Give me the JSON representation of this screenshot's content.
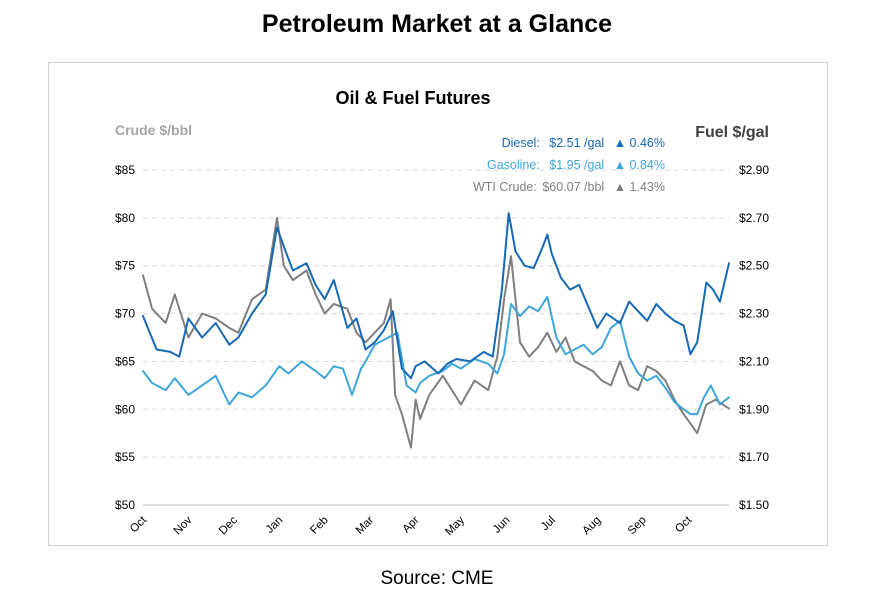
{
  "page": {
    "title": "Petroleum Market at a Glance",
    "source": "Source: CME"
  },
  "colors": {
    "diesel": "#1569b5",
    "gasoline": "#3fa6da",
    "crude": "#7f7f7f",
    "grid": "#d9d9d9"
  },
  "chart_data": {
    "type": "line",
    "title": "Oil & Fuel Futures",
    "ylabel_left": "Crude $/bbl",
    "ylabel_right": "Fuel $/gal",
    "left_axis": {
      "ylim": [
        50,
        85
      ],
      "ticks": [
        "$50",
        "$55",
        "$60",
        "$65",
        "$70",
        "$75",
        "$80",
        "$85"
      ]
    },
    "right_axis": {
      "ylim": [
        1.5,
        2.9
      ],
      "ticks": [
        "$1.50",
        "$1.70",
        "$1.90",
        "$2.10",
        "$2.30",
        "$2.50",
        "$2.70",
        "$2.90"
      ]
    },
    "grid": true,
    "x_tick_labels": [
      "Oct",
      "Nov",
      "Dec",
      "Jan",
      "Feb",
      "Mar",
      "Apr",
      "May",
      "Jun",
      "Jul",
      "Aug",
      "Sep",
      "Oct"
    ],
    "x_months_span": [
      0,
      12.9
    ],
    "legend": [
      {
        "name": "Diesel:",
        "price": "$2.51 /gal",
        "arrow": "▲",
        "change": "0.46%"
      },
      {
        "name": "Gasoline:",
        "price": "$1.95 /gal",
        "arrow": "▲",
        "change": "0.84%"
      },
      {
        "name": "WTI Crude:",
        "price": "$60.07 /bbl",
        "arrow": "▲",
        "change": "1.43%"
      }
    ],
    "legend_placement": "top-right",
    "series": [
      {
        "name": "Diesel",
        "axis": "right",
        "x": [
          0,
          0.3,
          0.6,
          0.8,
          1.0,
          1.3,
          1.6,
          1.9,
          2.1,
          2.4,
          2.7,
          2.95,
          3.1,
          3.3,
          3.6,
          3.8,
          4.0,
          4.2,
          4.5,
          4.7,
          4.9,
          5.1,
          5.3,
          5.5,
          5.7,
          5.9,
          6.0,
          6.2,
          6.5,
          6.7,
          6.9,
          7.2,
          7.5,
          7.7,
          7.9,
          8.05,
          8.2,
          8.4,
          8.6,
          8.8,
          8.9,
          9.0,
          9.2,
          9.4,
          9.6,
          9.8,
          10.0,
          10.2,
          10.5,
          10.7,
          10.9,
          11.1,
          11.3,
          11.5,
          11.7,
          11.9,
          12.05,
          12.2,
          12.4,
          12.55,
          12.7,
          12.9
        ],
        "values": [
          2.29,
          2.15,
          2.14,
          2.12,
          2.28,
          2.2,
          2.26,
          2.17,
          2.2,
          2.3,
          2.38,
          2.66,
          2.58,
          2.48,
          2.51,
          2.42,
          2.36,
          2.44,
          2.24,
          2.28,
          2.15,
          2.18,
          2.23,
          2.31,
          2.07,
          2.03,
          2.08,
          2.1,
          2.05,
          2.09,
          2.11,
          2.1,
          2.14,
          2.12,
          2.4,
          2.72,
          2.56,
          2.5,
          2.49,
          2.58,
          2.63,
          2.55,
          2.45,
          2.4,
          2.42,
          2.33,
          2.24,
          2.3,
          2.26,
          2.35,
          2.31,
          2.27,
          2.34,
          2.3,
          2.27,
          2.25,
          2.13,
          2.18,
          2.43,
          2.4,
          2.35,
          2.51
        ]
      },
      {
        "name": "Gasoline",
        "axis": "right",
        "x": [
          0,
          0.2,
          0.5,
          0.7,
          1.0,
          1.3,
          1.6,
          1.9,
          2.1,
          2.4,
          2.7,
          3.0,
          3.2,
          3.5,
          3.8,
          4.0,
          4.2,
          4.4,
          4.6,
          4.8,
          4.9,
          5.1,
          5.3,
          5.6,
          5.8,
          6.0,
          6.1,
          6.3,
          6.6,
          6.8,
          7.0,
          7.3,
          7.6,
          7.8,
          7.95,
          8.1,
          8.3,
          8.5,
          8.7,
          8.9,
          9.1,
          9.3,
          9.5,
          9.7,
          9.9,
          10.1,
          10.3,
          10.5,
          10.7,
          10.9,
          11.1,
          11.3,
          11.5,
          11.7,
          11.9,
          12.05,
          12.2,
          12.35,
          12.5,
          12.7,
          12.9
        ],
        "values": [
          2.06,
          2.01,
          1.98,
          2.03,
          1.96,
          2.0,
          2.04,
          1.92,
          1.97,
          1.95,
          2.0,
          2.08,
          2.05,
          2.1,
          2.06,
          2.03,
          2.08,
          2.07,
          1.96,
          2.07,
          2.1,
          2.17,
          2.19,
          2.22,
          2.0,
          1.97,
          2.01,
          2.04,
          2.06,
          2.09,
          2.07,
          2.11,
          2.09,
          2.05,
          2.13,
          2.34,
          2.29,
          2.33,
          2.31,
          2.37,
          2.2,
          2.13,
          2.15,
          2.17,
          2.13,
          2.16,
          2.24,
          2.27,
          2.12,
          2.05,
          2.02,
          2.04,
          1.99,
          1.93,
          1.9,
          1.88,
          1.88,
          1.95,
          2.0,
          1.92,
          1.95
        ]
      },
      {
        "name": "WTI Crude",
        "axis": "left",
        "x": [
          0,
          0.2,
          0.5,
          0.7,
          1.0,
          1.3,
          1.6,
          1.9,
          2.1,
          2.4,
          2.7,
          2.95,
          3.1,
          3.3,
          3.6,
          3.8,
          4.0,
          4.2,
          4.5,
          4.7,
          4.9,
          5.1,
          5.3,
          5.45,
          5.55,
          5.7,
          5.9,
          6.0,
          6.1,
          6.3,
          6.6,
          6.8,
          7.0,
          7.3,
          7.6,
          7.8,
          7.95,
          8.1,
          8.3,
          8.5,
          8.7,
          8.9,
          9.1,
          9.3,
          9.5,
          9.7,
          9.9,
          10.1,
          10.3,
          10.5,
          10.7,
          10.9,
          11.1,
          11.3,
          11.5,
          11.7,
          11.9,
          12.05,
          12.2,
          12.4,
          12.6,
          12.9
        ],
        "values": [
          74.0,
          70.5,
          69.0,
          72.0,
          67.5,
          70.0,
          69.5,
          68.5,
          68.0,
          71.5,
          72.5,
          80.0,
          75.0,
          73.5,
          74.5,
          72.0,
          70.0,
          71.0,
          70.5,
          68.0,
          67.0,
          68.0,
          69.0,
          71.5,
          61.5,
          59.5,
          56.0,
          61.0,
          59.0,
          61.5,
          63.5,
          62.0,
          60.5,
          63.0,
          62.0,
          65.5,
          71.5,
          76.0,
          67.0,
          65.5,
          66.5,
          68.0,
          66.0,
          67.5,
          65.0,
          64.5,
          64.0,
          63.0,
          62.5,
          65.0,
          62.5,
          62.0,
          64.5,
          64.0,
          63.0,
          61.0,
          59.5,
          58.5,
          57.5,
          60.5,
          61.0,
          60.07
        ]
      }
    ]
  }
}
